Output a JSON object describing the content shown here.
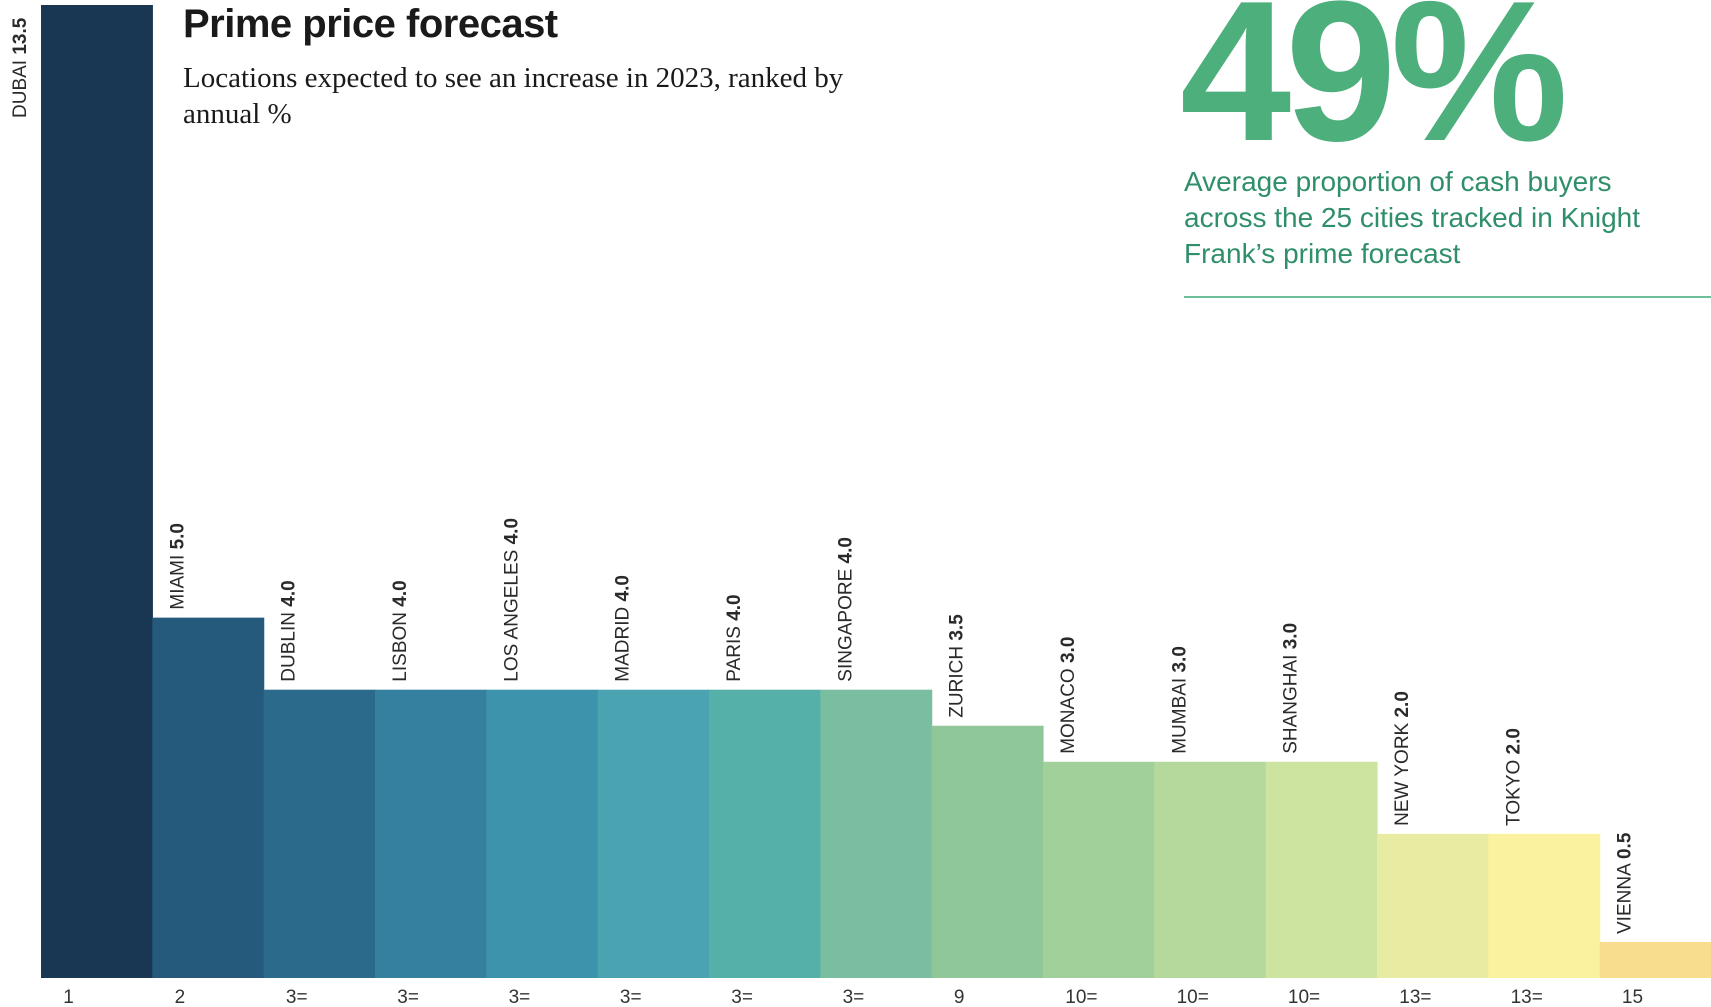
{
  "chart_data": {
    "type": "bar",
    "title": "Prime price forecast",
    "subtitle": "Locations expected to see an increase in 2023, ranked by annual %",
    "categories": [
      "DUBAI",
      "MIAMI",
      "DUBLIN",
      "LISBON",
      "LOS ANGELES",
      "MADRID",
      "PARIS",
      "SINGAPORE",
      "ZURICH",
      "MONACO",
      "MUMBAI",
      "SHANGHAI",
      "NEW YORK",
      "TOKYO",
      "VIENNA"
    ],
    "value_labels": [
      "13.5",
      "5.0",
      "4.0",
      "4.0",
      "4.0",
      "4.0",
      "4.0",
      "4.0",
      "3.5",
      "3.0",
      "3.0",
      "3.0",
      "2.0",
      "2.0",
      "0.5"
    ],
    "values": [
      13.5,
      5.0,
      4.0,
      4.0,
      4.0,
      4.0,
      4.0,
      4.0,
      3.5,
      3.0,
      3.0,
      3.0,
      2.0,
      2.0,
      0.5
    ],
    "ranks": [
      "1",
      "2",
      "3=",
      "3=",
      "3=",
      "3=",
      "3=",
      "3=",
      "9",
      "10=",
      "10=",
      "10=",
      "13=",
      "13=",
      "15"
    ],
    "colors": [
      "#193753",
      "#265a7d",
      "#2c6a8c",
      "#35809f",
      "#3d93ac",
      "#4aa3b0",
      "#56b0aa",
      "#79bea0",
      "#90c799",
      "#a2d09a",
      "#b5d99c",
      "#cde3a0",
      "#e8eba2",
      "#fbf2a0",
      "#f9dd8f"
    ],
    "ylim": [
      0,
      13.5
    ],
    "xlabel": "",
    "ylabel": "",
    "grid": false,
    "legend": "none"
  },
  "stat": {
    "value": "49%",
    "caption": "Average proportion of cash buyers across the 25 cities tracked in Knight Frank’s prime forecast",
    "color": "#4db07c"
  }
}
